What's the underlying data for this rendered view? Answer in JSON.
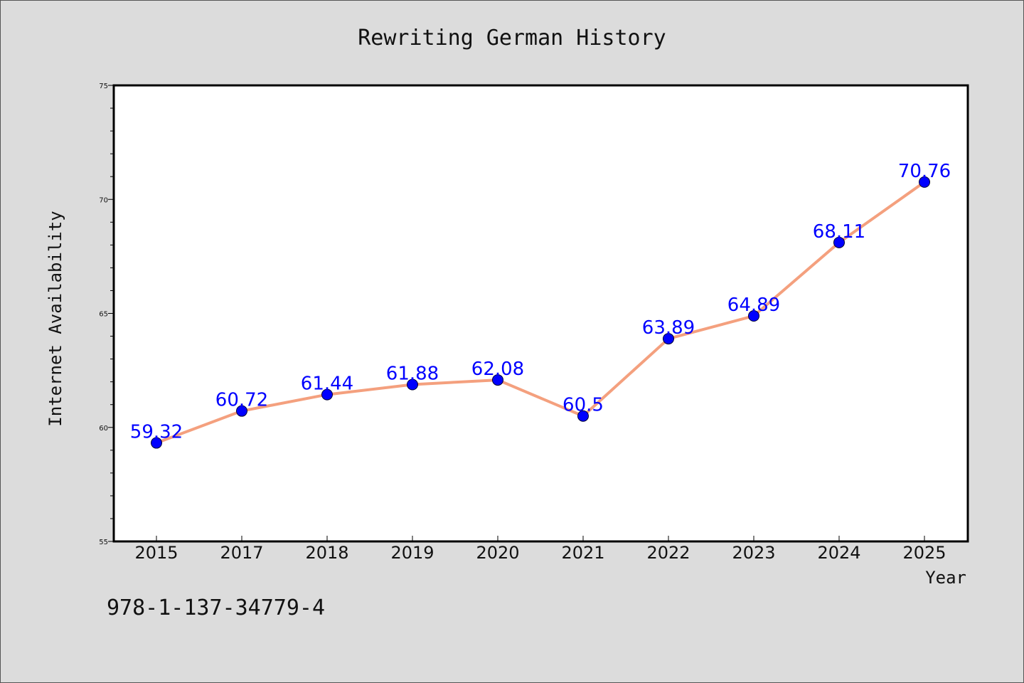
{
  "chart_data": {
    "type": "line",
    "title": "Rewriting German History",
    "xlabel": "Year",
    "ylabel": "Internet Availability",
    "x": [
      "2015",
      "2017",
      "2018",
      "2019",
      "2020",
      "2021",
      "2022",
      "2023",
      "2024",
      "2025"
    ],
    "series": [
      {
        "values": [
          59.32,
          60.72,
          61.44,
          61.88,
          62.08,
          60.5,
          63.89,
          64.89,
          68.11,
          70.76
        ]
      }
    ],
    "data_labels": [
      "59.32",
      "60.72",
      "61.44",
      "61.88",
      "62.08",
      "60.5",
      "63.89",
      "64.89",
      "68.11",
      "70.76"
    ],
    "ylim": [
      55,
      75
    ],
    "yticks": [
      "55",
      "60",
      "65",
      "70",
      "75"
    ],
    "grid": false,
    "line_color": "#f4a07e",
    "marker_color": "#0000ff",
    "label_color": "#0000ff"
  },
  "footer_text": "978-1-137-34779-4"
}
